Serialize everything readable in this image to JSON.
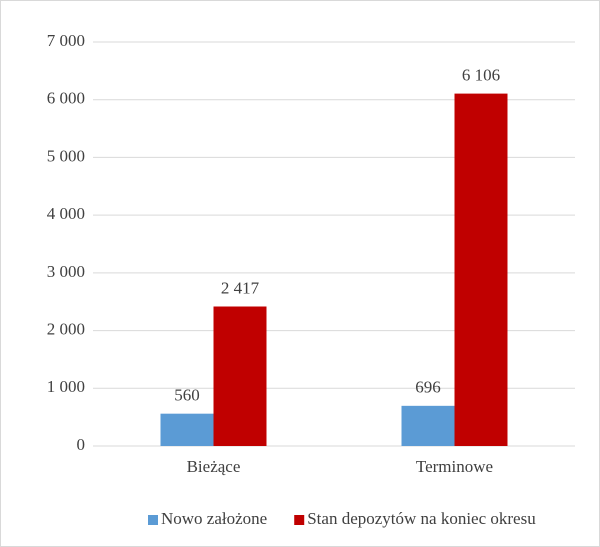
{
  "chart_data": {
    "type": "bar",
    "categories": [
      "Bieżące",
      "Terminowe"
    ],
    "series": [
      {
        "name": "Nowo założone",
        "color": "#5b9bd5",
        "values": [
          560,
          696
        ],
        "value_labels": [
          "560",
          "696"
        ]
      },
      {
        "name": "Stan depozytów na koniec okresu",
        "color": "#c00000",
        "values": [
          2417,
          6106
        ],
        "value_labels": [
          "2 417",
          "6 106"
        ]
      }
    ],
    "ylim": [
      0,
      7000
    ],
    "yticks": [
      0,
      {
        "value": 1000,
        "label": "1 000"
      },
      {
        "value": 2000,
        "label": "2 000"
      },
      {
        "value": 3000,
        "label": "3 000"
      },
      {
        "value": 4000,
        "label": "4 000"
      },
      {
        "value": 5000,
        "label": "5 000"
      },
      {
        "value": 6000,
        "label": "6 000"
      },
      {
        "value": 7000,
        "label": "7 000"
      }
    ],
    "grid": true,
    "legend": "bottom"
  }
}
